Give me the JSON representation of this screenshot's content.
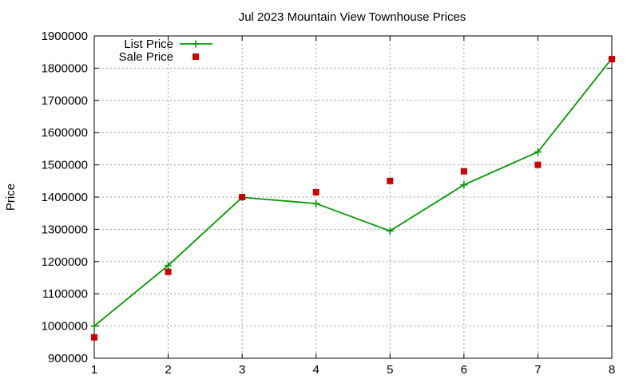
{
  "chart_data": {
    "type": "line",
    "title": "Jul 2023 Mountain View Townhouse Prices",
    "xlabel": "",
    "ylabel": "Price",
    "x": [
      1,
      2,
      3,
      4,
      5,
      6,
      7,
      8
    ],
    "xlim": [
      1,
      8
    ],
    "ylim": [
      900000,
      1900000
    ],
    "x_ticks": [
      "1",
      "2",
      "3",
      "4",
      "5",
      "6",
      "7",
      "8"
    ],
    "y_ticks": [
      "900000",
      "1000000",
      "1100000",
      "1200000",
      "1300000",
      "1400000",
      "1500000",
      "1600000",
      "1700000",
      "1800000",
      "1900000"
    ],
    "grid": true,
    "legend_position": "top-left",
    "series": [
      {
        "name": "List Price",
        "style": "lines-points",
        "marker": "plus",
        "color": "#009900",
        "values": [
          1000000,
          1188000,
          1399000,
          1380000,
          1295000,
          1438000,
          1540000,
          1830000
        ]
      },
      {
        "name": "Sale Price",
        "style": "points",
        "marker": "square",
        "color": "#cc0000",
        "values": [
          965000,
          1168000,
          1400000,
          1415000,
          1450000,
          1480000,
          1500000,
          1828000
        ]
      }
    ]
  }
}
